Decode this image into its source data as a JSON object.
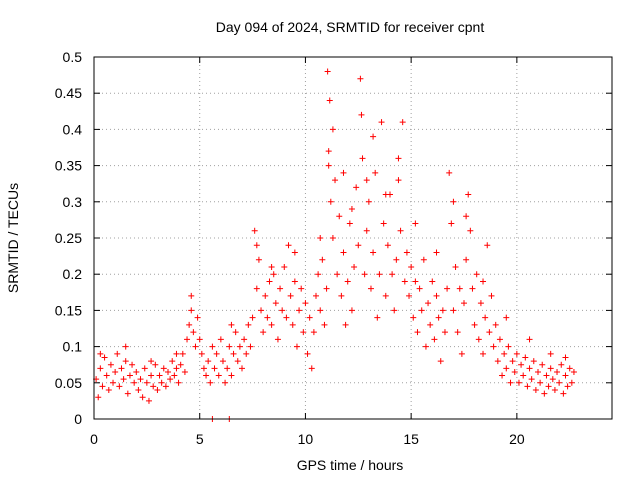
{
  "chart_data": {
    "type": "scatter",
    "title": "Day 094 of 2024, SRMTID for receiver cpnt",
    "xlabel": "GPS time / hours",
    "ylabel": "SRMTID / TECUs",
    "xlim": [
      0,
      24.5
    ],
    "ylim": [
      0,
      0.5
    ],
    "x_ticks": [
      0,
      5,
      10,
      15,
      20
    ],
    "y_ticks": [
      0,
      0.05,
      0.1,
      0.15,
      0.2,
      0.25,
      0.3,
      0.35,
      0.4,
      0.45,
      0.5
    ],
    "x_tick_labels": [
      "0",
      "5",
      "10",
      "15",
      "20"
    ],
    "y_tick_labels": [
      "0",
      "0.05",
      "0.1",
      "0.15",
      "0.2",
      "0.25",
      "0.3",
      "0.35",
      "0.4",
      "0.45",
      "0.5"
    ],
    "grid": true,
    "marker": "+",
    "color": "#ff0000",
    "series": [
      {
        "name": "SRMTID",
        "points": [
          [
            0.1,
            0.055
          ],
          [
            0.2,
            0.03
          ],
          [
            0.3,
            0.07
          ],
          [
            0.4,
            0.045
          ],
          [
            0.5,
            0.085
          ],
          [
            0.6,
            0.06
          ],
          [
            0.7,
            0.04
          ],
          [
            0.8,
            0.075
          ],
          [
            0.9,
            0.05
          ],
          [
            1.0,
            0.065
          ],
          [
            1.1,
            0.09
          ],
          [
            1.2,
            0.045
          ],
          [
            1.3,
            0.07
          ],
          [
            1.4,
            0.055
          ],
          [
            1.5,
            0.08
          ],
          [
            1.6,
            0.035
          ],
          [
            1.7,
            0.06
          ],
          [
            1.8,
            0.075
          ],
          [
            1.9,
            0.05
          ],
          [
            2.0,
            0.065
          ],
          [
            2.1,
            0.04
          ],
          [
            2.2,
            0.055
          ],
          [
            2.3,
            0.03
          ],
          [
            2.4,
            0.07
          ],
          [
            2.5,
            0.05
          ],
          [
            2.6,
            0.025
          ],
          [
            2.7,
            0.06
          ],
          [
            2.8,
            0.045
          ],
          [
            2.9,
            0.075
          ],
          [
            3.0,
            0.04
          ],
          [
            3.1,
            0.06
          ],
          [
            3.2,
            0.05
          ],
          [
            3.3,
            0.07
          ],
          [
            3.4,
            0.045
          ],
          [
            3.5,
            0.065
          ],
          [
            3.6,
            0.055
          ],
          [
            3.7,
            0.08
          ],
          [
            3.8,
            0.06
          ],
          [
            3.9,
            0.07
          ],
          [
            4.0,
            0.05
          ],
          [
            4.1,
            0.075
          ],
          [
            4.2,
            0.09
          ],
          [
            4.3,
            0.065
          ],
          [
            4.4,
            0.11
          ],
          [
            4.5,
            0.13
          ],
          [
            4.6,
            0.15
          ],
          [
            4.7,
            0.12
          ],
          [
            4.8,
            0.1
          ],
          [
            4.9,
            0.14
          ],
          [
            5.0,
            0.11
          ],
          [
            5.1,
            0.09
          ],
          [
            5.2,
            0.07
          ],
          [
            5.3,
            0.06
          ],
          [
            5.4,
            0.08
          ],
          [
            5.5,
            0.05
          ],
          [
            5.6,
            0.1
          ],
          [
            5.7,
            0.07
          ],
          [
            5.8,
            0.09
          ],
          [
            5.9,
            0.06
          ],
          [
            6.0,
            0.11
          ],
          [
            6.1,
            0.08
          ],
          [
            6.2,
            0.05
          ],
          [
            6.3,
            0.07
          ],
          [
            6.4,
            0.1
          ],
          [
            6.5,
            0.06
          ],
          [
            6.6,
            0.09
          ],
          [
            6.7,
            0.12
          ],
          [
            6.8,
            0.08
          ],
          [
            6.9,
            0.1
          ],
          [
            7.0,
            0.07
          ],
          [
            7.1,
            0.11
          ],
          [
            7.2,
            0.09
          ],
          [
            7.3,
            0.13
          ],
          [
            7.4,
            0.1
          ],
          [
            7.5,
            0.14
          ],
          [
            7.6,
            0.26
          ],
          [
            7.7,
            0.18
          ],
          [
            7.8,
            0.22
          ],
          [
            7.9,
            0.15
          ],
          [
            8.0,
            0.12
          ],
          [
            8.1,
            0.17
          ],
          [
            8.2,
            0.14
          ],
          [
            8.3,
            0.19
          ],
          [
            8.4,
            0.13
          ],
          [
            8.5,
            0.2
          ],
          [
            8.6,
            0.16
          ],
          [
            8.7,
            0.11
          ],
          [
            8.8,
            0.18
          ],
          [
            8.9,
            0.15
          ],
          [
            9.0,
            0.21
          ],
          [
            9.1,
            0.14
          ],
          [
            9.2,
            0.24
          ],
          [
            9.3,
            0.17
          ],
          [
            9.4,
            0.13
          ],
          [
            9.5,
            0.19
          ],
          [
            9.6,
            0.1
          ],
          [
            9.7,
            0.15
          ],
          [
            9.8,
            0.18
          ],
          [
            9.9,
            0.12
          ],
          [
            10.0,
            0.16
          ],
          [
            10.1,
            0.09
          ],
          [
            10.2,
            0.14
          ],
          [
            10.3,
            0.07
          ],
          [
            10.4,
            0.12
          ],
          [
            10.5,
            0.17
          ],
          [
            10.6,
            0.2
          ],
          [
            10.7,
            0.15
          ],
          [
            10.8,
            0.22
          ],
          [
            10.9,
            0.13
          ],
          [
            11.0,
            0.18
          ],
          [
            11.05,
            0.48
          ],
          [
            11.1,
            0.35
          ],
          [
            11.15,
            0.44
          ],
          [
            11.2,
            0.3
          ],
          [
            11.3,
            0.25
          ],
          [
            11.4,
            0.33
          ],
          [
            11.5,
            0.2
          ],
          [
            11.6,
            0.28
          ],
          [
            11.7,
            0.17
          ],
          [
            11.8,
            0.23
          ],
          [
            11.9,
            0.13
          ],
          [
            12.0,
            0.19
          ],
          [
            12.1,
            0.27
          ],
          [
            12.2,
            0.15
          ],
          [
            12.3,
            0.21
          ],
          [
            12.4,
            0.32
          ],
          [
            12.5,
            0.24
          ],
          [
            12.6,
            0.47
          ],
          [
            12.65,
            0.42
          ],
          [
            12.7,
            0.36
          ],
          [
            12.8,
            0.2
          ],
          [
            12.9,
            0.26
          ],
          [
            13.0,
            0.3
          ],
          [
            13.1,
            0.18
          ],
          [
            13.2,
            0.23
          ],
          [
            13.3,
            0.34
          ],
          [
            13.4,
            0.14
          ],
          [
            13.5,
            0.2
          ],
          [
            13.6,
            0.41
          ],
          [
            13.7,
            0.27
          ],
          [
            13.8,
            0.17
          ],
          [
            13.9,
            0.24
          ],
          [
            14.0,
            0.31
          ],
          [
            14.1,
            0.2
          ],
          [
            14.2,
            0.15
          ],
          [
            14.3,
            0.22
          ],
          [
            14.4,
            0.36
          ],
          [
            14.5,
            0.26
          ],
          [
            14.6,
            0.41
          ],
          [
            14.7,
            0.19
          ],
          [
            14.8,
            0.23
          ],
          [
            14.9,
            0.17
          ],
          [
            15.0,
            0.21
          ],
          [
            15.1,
            0.14
          ],
          [
            15.2,
            0.19
          ],
          [
            15.3,
            0.12
          ],
          [
            15.4,
            0.18
          ],
          [
            15.5,
            0.15
          ],
          [
            15.6,
            0.22
          ],
          [
            15.7,
            0.1
          ],
          [
            15.8,
            0.16
          ],
          [
            15.9,
            0.13
          ],
          [
            16.0,
            0.19
          ],
          [
            16.1,
            0.11
          ],
          [
            16.2,
            0.17
          ],
          [
            16.3,
            0.14
          ],
          [
            16.4,
            0.08
          ],
          [
            16.5,
            0.15
          ],
          [
            16.6,
            0.12
          ],
          [
            16.7,
            0.18
          ],
          [
            16.8,
            0.34
          ],
          [
            16.9,
            0.27
          ],
          [
            17.0,
            0.15
          ],
          [
            17.1,
            0.21
          ],
          [
            17.2,
            0.12
          ],
          [
            17.3,
            0.18
          ],
          [
            17.4,
            0.09
          ],
          [
            17.5,
            0.16
          ],
          [
            17.6,
            0.22
          ],
          [
            17.7,
            0.31
          ],
          [
            17.8,
            0.26
          ],
          [
            17.9,
            0.18
          ],
          [
            18.0,
            0.13
          ],
          [
            18.1,
            0.2
          ],
          [
            18.2,
            0.11
          ],
          [
            18.3,
            0.16
          ],
          [
            18.4,
            0.09
          ],
          [
            18.5,
            0.14
          ],
          [
            18.6,
            0.24
          ],
          [
            18.7,
            0.12
          ],
          [
            18.8,
            0.17
          ],
          [
            18.9,
            0.1
          ],
          [
            19.0,
            0.13
          ],
          [
            19.1,
            0.08
          ],
          [
            19.2,
            0.11
          ],
          [
            19.3,
            0.06
          ],
          [
            19.4,
            0.09
          ],
          [
            19.5,
            0.07
          ],
          [
            19.6,
            0.1
          ],
          [
            19.7,
            0.05
          ],
          [
            19.8,
            0.08
          ],
          [
            19.9,
            0.065
          ],
          [
            20.0,
            0.09
          ],
          [
            20.1,
            0.05
          ],
          [
            20.2,
            0.075
          ],
          [
            20.3,
            0.06
          ],
          [
            20.4,
            0.085
          ],
          [
            20.5,
            0.045
          ],
          [
            20.6,
            0.07
          ],
          [
            20.7,
            0.055
          ],
          [
            20.8,
            0.08
          ],
          [
            20.9,
            0.04
          ],
          [
            21.0,
            0.065
          ],
          [
            21.1,
            0.05
          ],
          [
            21.2,
            0.075
          ],
          [
            21.3,
            0.035
          ],
          [
            21.4,
            0.06
          ],
          [
            21.5,
            0.045
          ],
          [
            21.6,
            0.07
          ],
          [
            21.7,
            0.055
          ],
          [
            21.8,
            0.04
          ],
          [
            21.9,
            0.065
          ],
          [
            22.0,
            0.05
          ],
          [
            22.1,
            0.075
          ],
          [
            22.2,
            0.035
          ],
          [
            22.3,
            0.06
          ],
          [
            22.4,
            0.045
          ],
          [
            22.5,
            0.07
          ],
          [
            22.6,
            0.05
          ],
          [
            22.7,
            0.065
          ],
          [
            0.3,
            0.09
          ],
          [
            1.5,
            0.1
          ],
          [
            2.7,
            0.08
          ],
          [
            3.9,
            0.09
          ],
          [
            4.6,
            0.17
          ],
          [
            6.5,
            0.13
          ],
          [
            7.7,
            0.24
          ],
          [
            8.4,
            0.21
          ],
          [
            9.5,
            0.23
          ],
          [
            10.7,
            0.25
          ],
          [
            11.1,
            0.37
          ],
          [
            11.3,
            0.4
          ],
          [
            11.8,
            0.34
          ],
          [
            12.2,
            0.29
          ],
          [
            12.9,
            0.33
          ],
          [
            13.2,
            0.39
          ],
          [
            13.8,
            0.31
          ],
          [
            14.4,
            0.33
          ],
          [
            15.2,
            0.27
          ],
          [
            16.2,
            0.23
          ],
          [
            17.0,
            0.3
          ],
          [
            17.6,
            0.28
          ],
          [
            18.4,
            0.19
          ],
          [
            19.5,
            0.14
          ],
          [
            20.6,
            0.11
          ],
          [
            21.6,
            0.09
          ],
          [
            22.3,
            0.085
          ],
          [
            5.6,
            0.0
          ],
          [
            6.4,
            0.0
          ]
        ]
      }
    ]
  }
}
